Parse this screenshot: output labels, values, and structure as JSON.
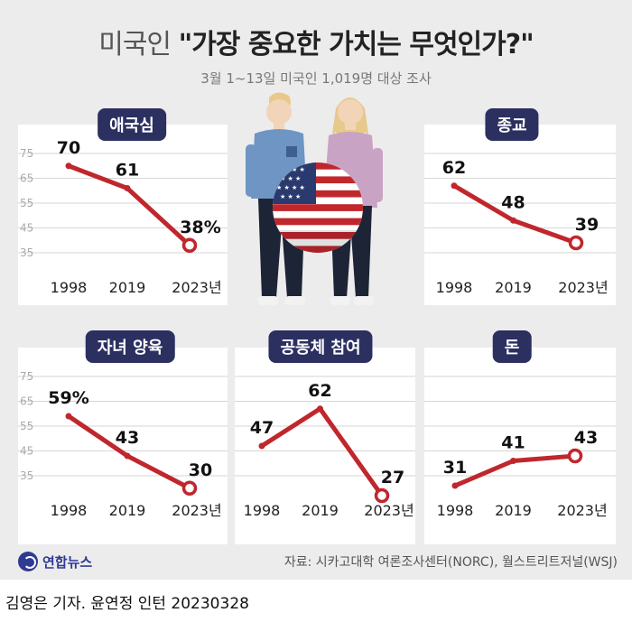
{
  "title_prefix": "미국인",
  "title_main": "\"가장 중요한 가치는 무엇인가?\"",
  "subtitle": "3월 1~13일 미국인 1,019명 대상 조사",
  "source": "자료: 시카고대학 여론조사센터(NORC), 월스트리트저널(WSJ)",
  "logo_text": "연합뉴스",
  "credit": "김영은 기자. 윤연정 인턴  20230328",
  "colors": {
    "line": "#c0272d",
    "label_bg": "#2b3060",
    "grid": "#d6d6d6"
  },
  "chart_data": [
    {
      "type": "line",
      "title": "애국심",
      "categories": [
        "1998",
        "2019",
        "2023년"
      ],
      "values": [
        70,
        61,
        38
      ],
      "value_labels": [
        "70",
        "61",
        "38%"
      ],
      "yticks": [
        "75",
        "65",
        "55",
        "45",
        "35"
      ],
      "ylim": [
        35,
        75
      ],
      "show_yticks": true
    },
    {
      "type": "line",
      "title": "종교",
      "categories": [
        "1998",
        "2019",
        "2023년"
      ],
      "values": [
        62,
        48,
        39
      ],
      "value_labels": [
        "62",
        "48",
        "39"
      ],
      "yticks": [],
      "ylim": [
        35,
        75
      ],
      "show_yticks": false
    },
    {
      "type": "line",
      "title": "자녀 양육",
      "categories": [
        "1998",
        "2019",
        "2023년"
      ],
      "values": [
        59,
        43,
        30
      ],
      "value_labels": [
        "59%",
        "43",
        "30"
      ],
      "yticks": [
        "75",
        "65",
        "55",
        "45",
        "35"
      ],
      "ylim": [
        35,
        75
      ],
      "show_yticks": true
    },
    {
      "type": "line",
      "title": "공동체 참여",
      "categories": [
        "1998",
        "2019",
        "2023년"
      ],
      "values": [
        47,
        62,
        27
      ],
      "value_labels": [
        "47",
        "62",
        "27"
      ],
      "yticks": [],
      "ylim": [
        35,
        75
      ],
      "show_yticks": false
    },
    {
      "type": "line",
      "title": "돈",
      "categories": [
        "1998",
        "2019",
        "2023년"
      ],
      "values": [
        31,
        41,
        43
      ],
      "value_labels": [
        "31",
        "41",
        "43"
      ],
      "yticks": [],
      "ylim": [
        35,
        75
      ],
      "show_yticks": false
    }
  ]
}
